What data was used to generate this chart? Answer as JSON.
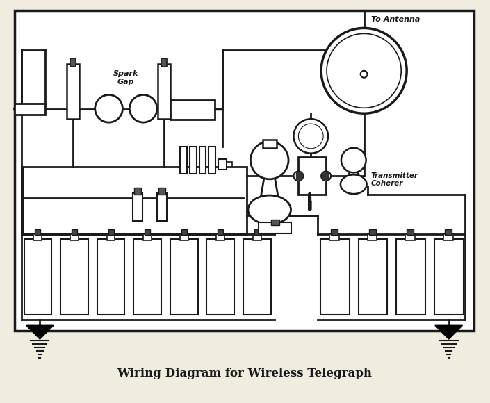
{
  "title": "Wiring Diagram for Wireless Telegraph",
  "title_fontsize": 12,
  "background_color": "#f0ece0",
  "diagram_bg": "#ffffff",
  "border_color": "#1a1a1a",
  "line_color": "#1a1a1a",
  "label_spark_gap": "Spark\nGap",
  "label_to_antenna": "To Antenna",
  "label_transmitter": "Transmitter\nCoherer",
  "figsize": [
    7.05,
    5.8
  ],
  "dpi": 100,
  "lw_main": 2.0,
  "lw_thin": 1.2,
  "lw_border": 2.5
}
